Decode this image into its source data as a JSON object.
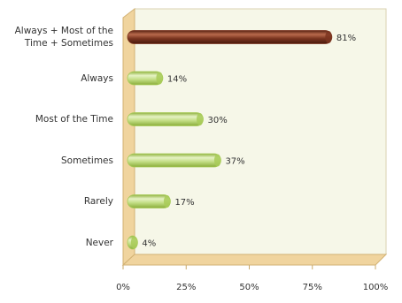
{
  "chart_data": {
    "type": "bar",
    "orientation": "horizontal",
    "categories": [
      "Always + Most of the Time + Sometimes",
      "Always",
      "Most of the Time",
      "Sometimes",
      "Rarely",
      "Never"
    ],
    "values": [
      81,
      14,
      30,
      37,
      17,
      4
    ],
    "value_labels": [
      "81%",
      "14%",
      "30%",
      "37%",
      "17%",
      "4%"
    ],
    "colors": [
      "#7b3520",
      "#a8cb58",
      "#a8cb58",
      "#a8cb58",
      "#a8cb58",
      "#a8cb58"
    ],
    "xlim": [
      0,
      100
    ],
    "xticks": [
      {
        "value": 0,
        "label": "0%"
      },
      {
        "value": 25,
        "label": "25%"
      },
      {
        "value": 50,
        "label": "50%"
      },
      {
        "value": 75,
        "label": "75%"
      },
      {
        "value": 100,
        "label": "100%"
      }
    ]
  }
}
